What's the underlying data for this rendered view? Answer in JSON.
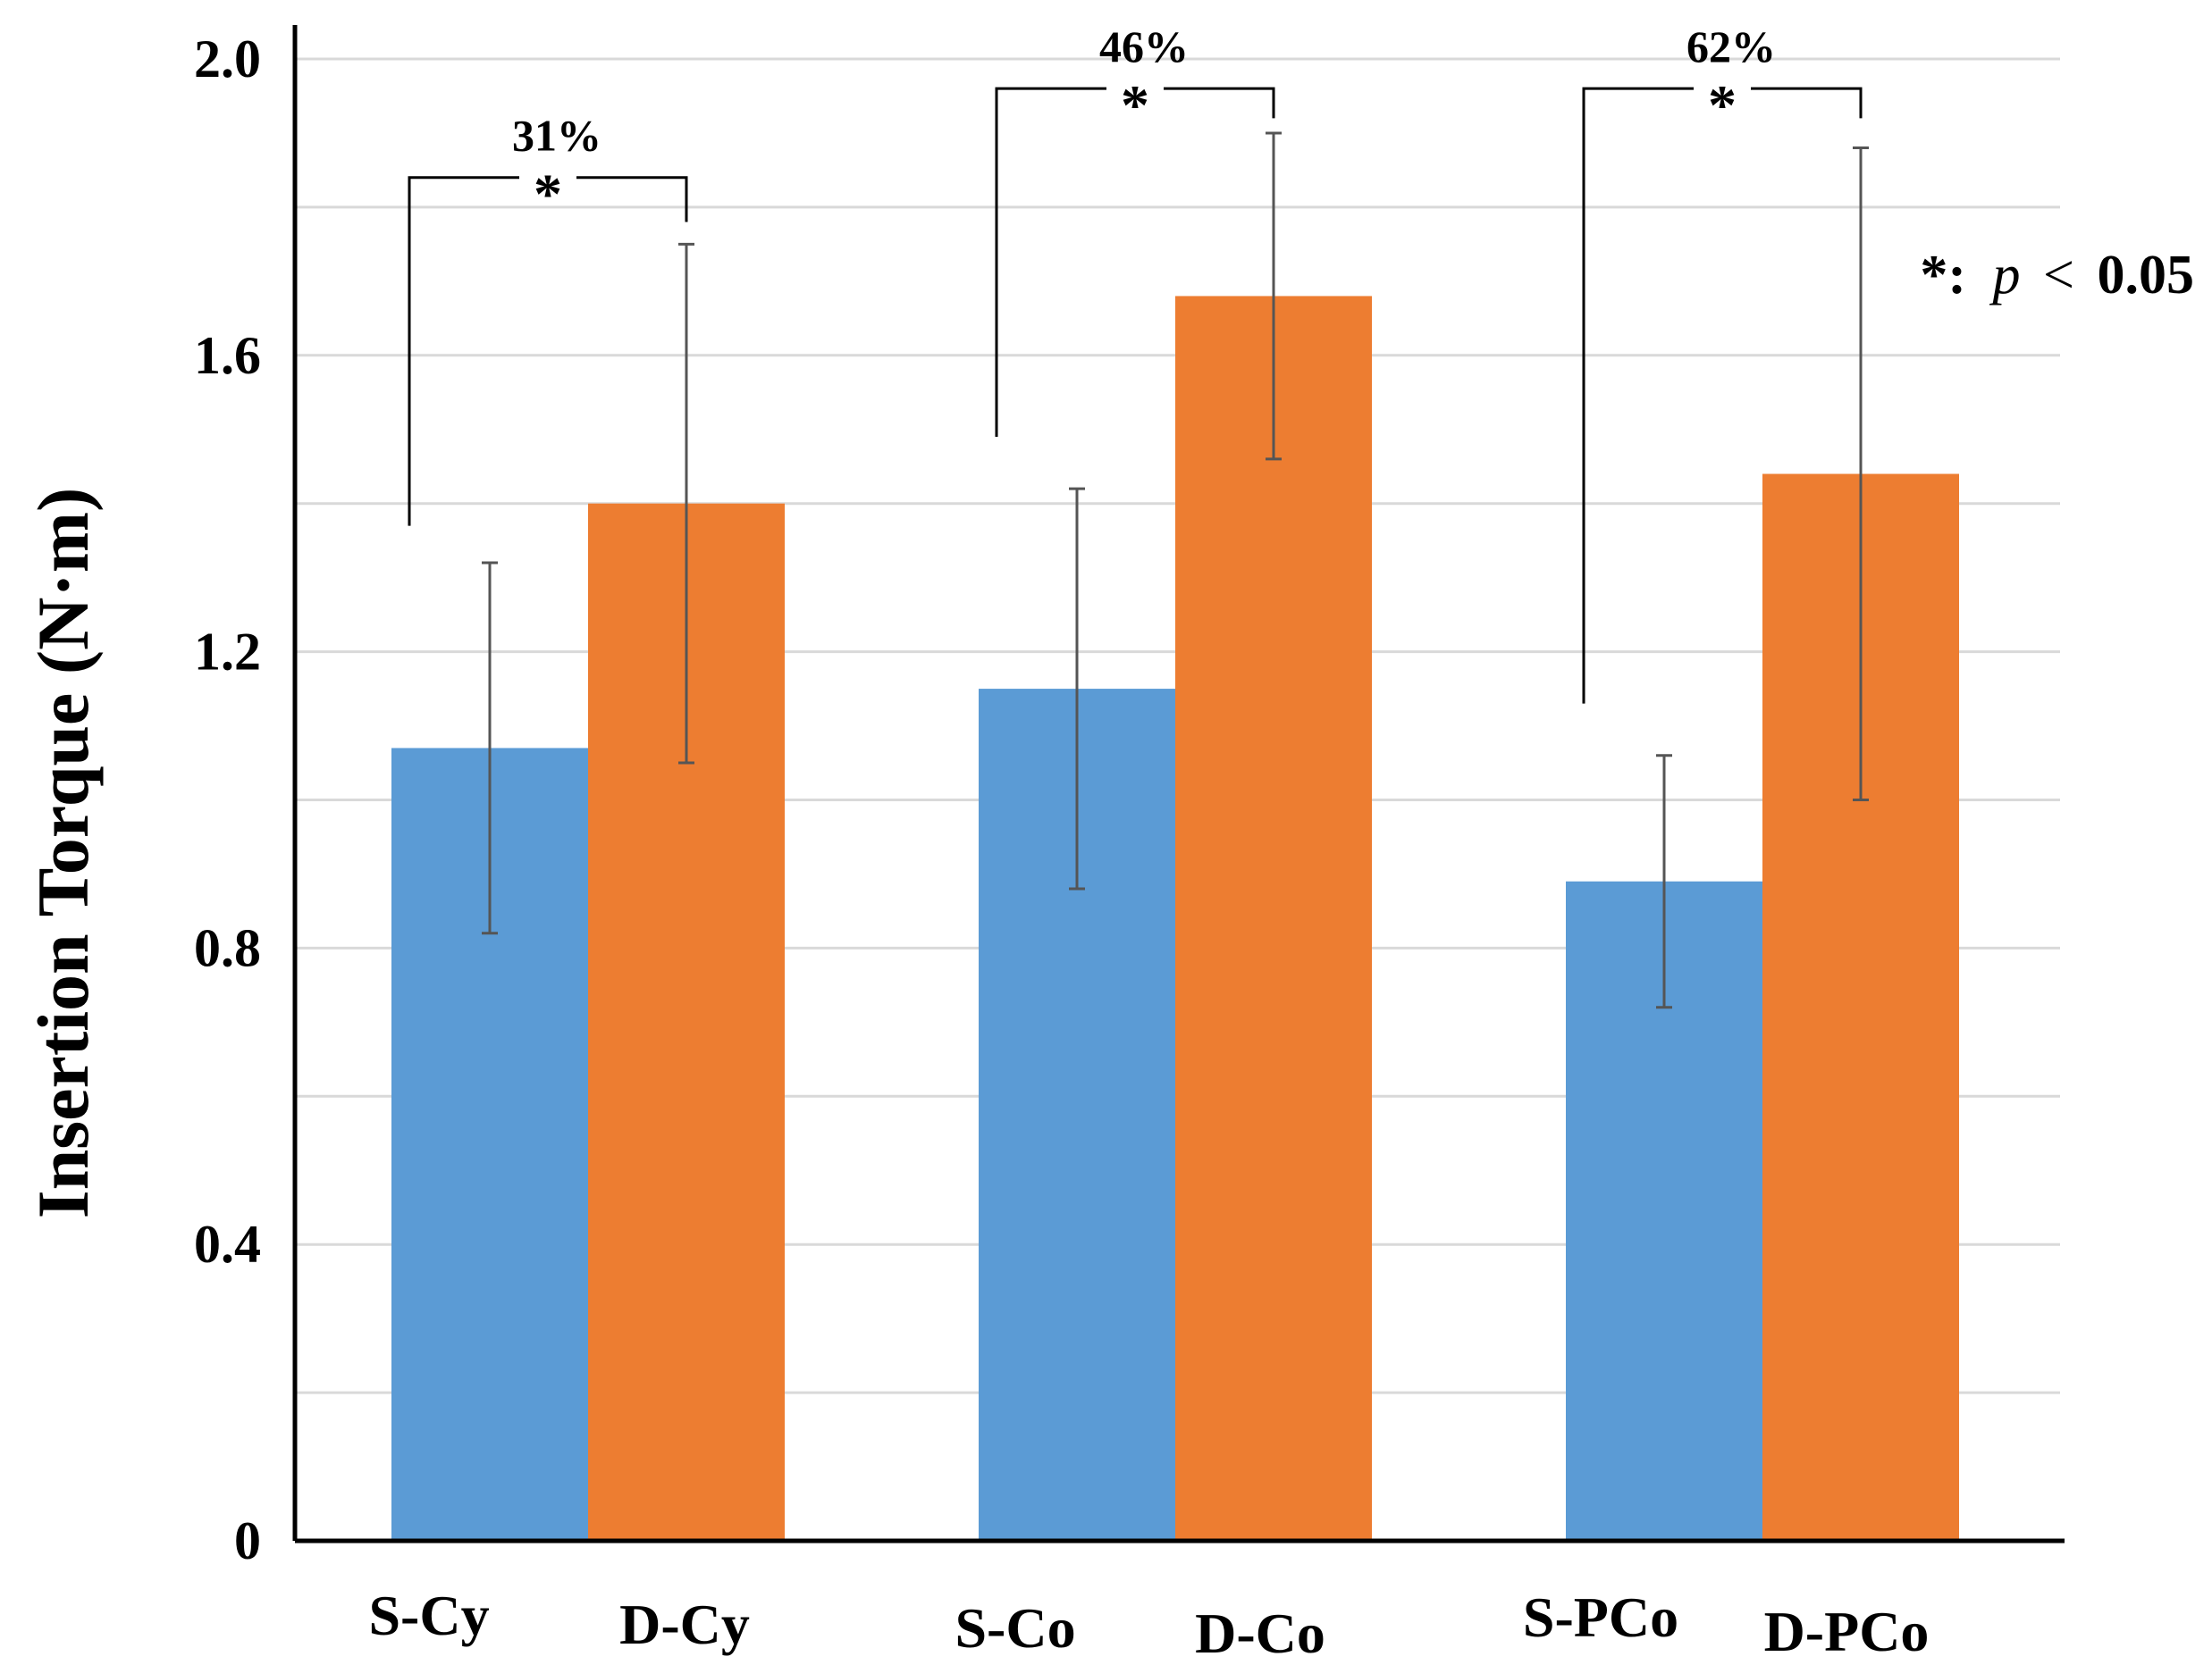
{
  "chart_data": {
    "type": "bar",
    "ylabel": "Insertion Torque (N·m)",
    "ylim": [
      0,
      2.0
    ],
    "yticks": [
      {
        "value": 0,
        "label": "0"
      },
      {
        "value": 0.4,
        "label": "0.4"
      },
      {
        "value": 0.8,
        "label": "0.8"
      },
      {
        "value": 1.2,
        "label": "1.2"
      },
      {
        "value": 1.6,
        "label": "1.6"
      },
      {
        "value": 2.0,
        "label": "2.0"
      }
    ],
    "grid_step": 0.2,
    "grid": true,
    "colors": {
      "S": "#5b9bd5",
      "D": "#ed7d31"
    },
    "bars": [
      {
        "label": "S-Cy",
        "group": "S",
        "value": 1.07,
        "err_low": 0.82,
        "err_high": 1.32
      },
      {
        "label": "D-Cy",
        "group": "D",
        "value": 1.4,
        "err_low": 1.05,
        "err_high": 1.75
      },
      {
        "label": "S-Co",
        "group": "S",
        "value": 1.15,
        "err_low": 0.88,
        "err_high": 1.42
      },
      {
        "label": "D-Co",
        "group": "D",
        "value": 1.68,
        "err_low": 1.46,
        "err_high": 1.9
      },
      {
        "label": "S-PCo",
        "group": "S",
        "value": 0.89,
        "err_low": 0.72,
        "err_high": 1.06
      },
      {
        "label": "D-PCo",
        "group": "D",
        "value": 1.44,
        "err_low": 1.0,
        "err_high": 1.88
      }
    ],
    "comparisons": [
      {
        "from": 0,
        "to": 1,
        "percent": "31%",
        "star": "*",
        "y": 1.84,
        "start_y": 1.37,
        "end_y": 1.78
      },
      {
        "from": 2,
        "to": 3,
        "percent": "46%",
        "star": "*",
        "y": 1.96,
        "start_y": 1.49,
        "end_y": 1.92
      },
      {
        "from": 4,
        "to": 5,
        "percent": "62%",
        "star": "*",
        "y": 1.96,
        "start_y": 1.13,
        "end_y": 1.92
      }
    ],
    "significance_note": {
      "star": "*:",
      "p": "p",
      "op": "<",
      "threshold": "0.05"
    }
  }
}
